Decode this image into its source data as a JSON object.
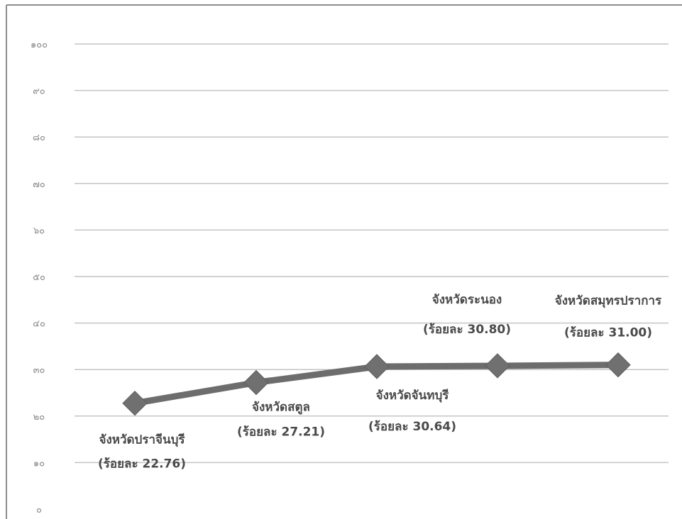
{
  "chart_data": {
    "type": "line",
    "title": "",
    "xlabel": "",
    "ylabel": "",
    "ylim": [
      0,
      100
    ],
    "yticks": [
      "๐",
      "๑๐",
      "๒๐",
      "๓๐",
      "๔๐",
      "๕๐",
      "๖๐",
      "๗๐",
      "๘๐",
      "๙๐",
      "๑๐๐"
    ],
    "grid": true,
    "legend": "none",
    "line_color": "#6d6d6d",
    "marker": "diamond",
    "series": [
      {
        "values": [
          22.76,
          27.21,
          30.64,
          30.8,
          31.0
        ]
      }
    ],
    "points": [
      {
        "name": "จังหวัดปราจีนบุรี",
        "value_label": "(ร้อยละ 22.76)",
        "value": 22.76
      },
      {
        "name": "จังหวัดสตูล",
        "value_label": "(ร้อยละ 27.21)",
        "value": 27.21
      },
      {
        "name": "จังหวัดจันทบุรี",
        "value_label": "(ร้อยละ  30.64)",
        "value": 30.64
      },
      {
        "name": "จังหวัดระนอง",
        "value_label": "(ร้อยละ 30.80)",
        "value": 30.8
      },
      {
        "name": "จังหวัดสมุทรปราการ",
        "value_label": "(ร้อยละ 31.00)",
        "value": 31.0
      }
    ]
  }
}
